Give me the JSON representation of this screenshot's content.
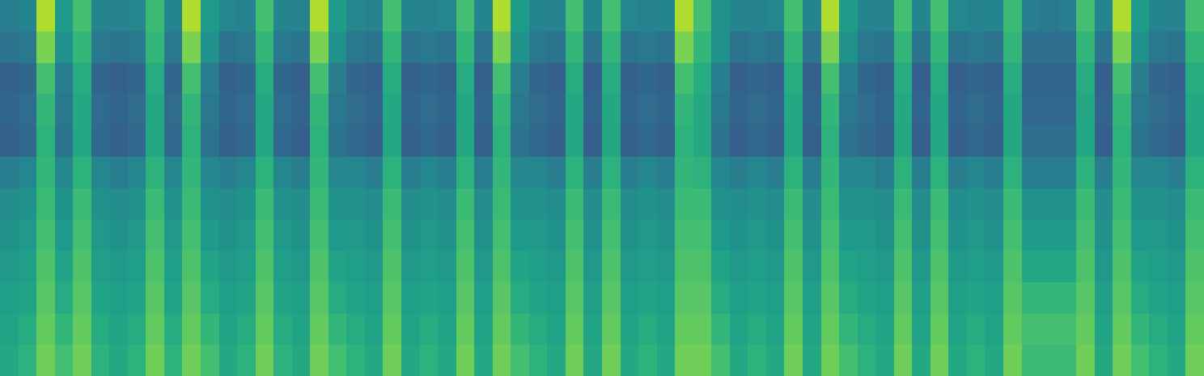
{
  "chart_data": {
    "type": "heatmap",
    "color": "Viridis",
    "tick_labels": false,
    "zlim": [
      0,
      1
    ],
    "cells": [
      [
        0.42,
        0.45,
        0.88,
        0.55,
        0.7,
        0.45,
        0.44,
        0.46,
        0.68,
        0.45,
        0.88,
        0.55,
        0.46,
        0.44,
        0.7,
        0.45,
        0.44,
        0.88,
        0.55,
        0.46,
        0.44,
        0.7,
        0.45,
        0.44,
        0.46,
        0.7,
        0.45,
        0.88,
        0.55,
        0.45,
        0.44,
        0.7,
        0.45,
        0.7,
        0.46,
        0.44,
        0.45,
        0.88,
        0.7,
        0.5,
        0.45,
        0.44,
        0.46,
        0.7,
        0.45,
        0.88,
        0.55,
        0.45,
        0.44,
        0.7,
        0.45,
        0.7,
        0.46,
        0.44,
        0.45,
        0.68,
        0.42,
        0.4,
        0.42,
        0.7,
        0.45,
        0.88,
        0.55,
        0.45,
        0.44,
        0.7
      ],
      [
        0.38,
        0.4,
        0.8,
        0.5,
        0.66,
        0.4,
        0.38,
        0.4,
        0.66,
        0.4,
        0.8,
        0.5,
        0.38,
        0.4,
        0.66,
        0.4,
        0.38,
        0.8,
        0.5,
        0.4,
        0.38,
        0.66,
        0.38,
        0.4,
        0.38,
        0.66,
        0.38,
        0.8,
        0.5,
        0.4,
        0.38,
        0.66,
        0.38,
        0.66,
        0.38,
        0.4,
        0.38,
        0.8,
        0.66,
        0.5,
        0.38,
        0.4,
        0.38,
        0.66,
        0.38,
        0.8,
        0.5,
        0.4,
        0.38,
        0.66,
        0.38,
        0.66,
        0.38,
        0.4,
        0.38,
        0.66,
        0.36,
        0.36,
        0.36,
        0.66,
        0.38,
        0.8,
        0.5,
        0.4,
        0.38,
        0.66
      ],
      [
        0.3,
        0.33,
        0.7,
        0.42,
        0.62,
        0.33,
        0.3,
        0.33,
        0.62,
        0.33,
        0.7,
        0.42,
        0.3,
        0.33,
        0.62,
        0.33,
        0.3,
        0.7,
        0.42,
        0.33,
        0.3,
        0.62,
        0.3,
        0.33,
        0.3,
        0.62,
        0.3,
        0.7,
        0.42,
        0.33,
        0.3,
        0.62,
        0.3,
        0.62,
        0.3,
        0.33,
        0.3,
        0.7,
        0.62,
        0.42,
        0.3,
        0.33,
        0.3,
        0.62,
        0.3,
        0.7,
        0.42,
        0.33,
        0.3,
        0.62,
        0.3,
        0.62,
        0.3,
        0.33,
        0.3,
        0.62,
        0.32,
        0.32,
        0.32,
        0.62,
        0.3,
        0.7,
        0.42,
        0.33,
        0.3,
        0.62
      ],
      [
        0.32,
        0.35,
        0.66,
        0.4,
        0.6,
        0.35,
        0.32,
        0.35,
        0.6,
        0.35,
        0.66,
        0.4,
        0.32,
        0.35,
        0.6,
        0.35,
        0.32,
        0.66,
        0.4,
        0.35,
        0.32,
        0.6,
        0.32,
        0.35,
        0.32,
        0.6,
        0.32,
        0.66,
        0.4,
        0.35,
        0.32,
        0.6,
        0.32,
        0.6,
        0.32,
        0.35,
        0.32,
        0.66,
        0.6,
        0.4,
        0.32,
        0.35,
        0.32,
        0.6,
        0.32,
        0.66,
        0.4,
        0.35,
        0.32,
        0.6,
        0.32,
        0.6,
        0.32,
        0.35,
        0.32,
        0.6,
        0.34,
        0.34,
        0.34,
        0.6,
        0.32,
        0.66,
        0.4,
        0.35,
        0.32,
        0.6
      ],
      [
        0.3,
        0.34,
        0.64,
        0.38,
        0.6,
        0.34,
        0.3,
        0.34,
        0.6,
        0.34,
        0.64,
        0.38,
        0.3,
        0.34,
        0.6,
        0.34,
        0.3,
        0.64,
        0.38,
        0.34,
        0.3,
        0.6,
        0.3,
        0.34,
        0.3,
        0.6,
        0.3,
        0.64,
        0.38,
        0.34,
        0.3,
        0.6,
        0.3,
        0.6,
        0.3,
        0.34,
        0.3,
        0.64,
        0.6,
        0.38,
        0.3,
        0.34,
        0.3,
        0.6,
        0.3,
        0.64,
        0.38,
        0.34,
        0.3,
        0.6,
        0.3,
        0.6,
        0.3,
        0.34,
        0.3,
        0.6,
        0.36,
        0.36,
        0.36,
        0.6,
        0.3,
        0.64,
        0.38,
        0.34,
        0.3,
        0.6
      ],
      [
        0.42,
        0.46,
        0.66,
        0.46,
        0.64,
        0.46,
        0.42,
        0.46,
        0.64,
        0.46,
        0.66,
        0.46,
        0.42,
        0.46,
        0.64,
        0.46,
        0.42,
        0.66,
        0.46,
        0.46,
        0.42,
        0.64,
        0.42,
        0.46,
        0.42,
        0.64,
        0.42,
        0.66,
        0.46,
        0.46,
        0.42,
        0.64,
        0.42,
        0.64,
        0.42,
        0.46,
        0.42,
        0.66,
        0.64,
        0.46,
        0.42,
        0.46,
        0.42,
        0.64,
        0.42,
        0.66,
        0.46,
        0.46,
        0.42,
        0.64,
        0.42,
        0.64,
        0.42,
        0.46,
        0.42,
        0.64,
        0.42,
        0.42,
        0.42,
        0.64,
        0.42,
        0.66,
        0.46,
        0.46,
        0.42,
        0.64
      ],
      [
        0.48,
        0.5,
        0.68,
        0.5,
        0.68,
        0.5,
        0.48,
        0.5,
        0.68,
        0.5,
        0.68,
        0.5,
        0.48,
        0.5,
        0.68,
        0.5,
        0.48,
        0.68,
        0.5,
        0.5,
        0.48,
        0.68,
        0.48,
        0.5,
        0.48,
        0.68,
        0.48,
        0.68,
        0.5,
        0.5,
        0.48,
        0.68,
        0.48,
        0.68,
        0.48,
        0.5,
        0.48,
        0.68,
        0.68,
        0.5,
        0.48,
        0.5,
        0.48,
        0.68,
        0.48,
        0.68,
        0.5,
        0.5,
        0.48,
        0.68,
        0.48,
        0.68,
        0.48,
        0.5,
        0.48,
        0.68,
        0.5,
        0.5,
        0.5,
        0.68,
        0.48,
        0.68,
        0.5,
        0.5,
        0.48,
        0.68
      ],
      [
        0.5,
        0.53,
        0.7,
        0.54,
        0.7,
        0.53,
        0.5,
        0.53,
        0.7,
        0.53,
        0.7,
        0.54,
        0.5,
        0.53,
        0.7,
        0.53,
        0.5,
        0.7,
        0.54,
        0.53,
        0.5,
        0.7,
        0.5,
        0.53,
        0.5,
        0.7,
        0.5,
        0.7,
        0.54,
        0.53,
        0.5,
        0.7,
        0.5,
        0.7,
        0.5,
        0.53,
        0.5,
        0.7,
        0.7,
        0.54,
        0.5,
        0.53,
        0.5,
        0.7,
        0.5,
        0.7,
        0.54,
        0.53,
        0.5,
        0.7,
        0.5,
        0.7,
        0.5,
        0.53,
        0.5,
        0.7,
        0.55,
        0.55,
        0.55,
        0.7,
        0.5,
        0.7,
        0.54,
        0.53,
        0.5,
        0.7
      ],
      [
        0.53,
        0.56,
        0.72,
        0.58,
        0.72,
        0.56,
        0.53,
        0.56,
        0.72,
        0.56,
        0.72,
        0.58,
        0.53,
        0.56,
        0.72,
        0.56,
        0.53,
        0.72,
        0.58,
        0.56,
        0.53,
        0.72,
        0.53,
        0.56,
        0.53,
        0.72,
        0.53,
        0.72,
        0.58,
        0.56,
        0.53,
        0.72,
        0.53,
        0.72,
        0.53,
        0.56,
        0.53,
        0.72,
        0.72,
        0.58,
        0.53,
        0.56,
        0.53,
        0.72,
        0.53,
        0.72,
        0.58,
        0.56,
        0.53,
        0.72,
        0.53,
        0.72,
        0.53,
        0.56,
        0.53,
        0.72,
        0.6,
        0.6,
        0.6,
        0.72,
        0.53,
        0.72,
        0.58,
        0.56,
        0.53,
        0.72
      ],
      [
        0.56,
        0.58,
        0.74,
        0.62,
        0.74,
        0.58,
        0.56,
        0.58,
        0.74,
        0.58,
        0.74,
        0.62,
        0.56,
        0.58,
        0.74,
        0.58,
        0.56,
        0.74,
        0.62,
        0.58,
        0.56,
        0.74,
        0.56,
        0.58,
        0.56,
        0.74,
        0.56,
        0.74,
        0.62,
        0.58,
        0.56,
        0.74,
        0.56,
        0.74,
        0.56,
        0.58,
        0.56,
        0.74,
        0.74,
        0.62,
        0.56,
        0.58,
        0.56,
        0.74,
        0.56,
        0.74,
        0.62,
        0.58,
        0.56,
        0.74,
        0.56,
        0.74,
        0.56,
        0.58,
        0.56,
        0.74,
        0.66,
        0.66,
        0.66,
        0.74,
        0.56,
        0.74,
        0.62,
        0.58,
        0.56,
        0.74
      ],
      [
        0.58,
        0.62,
        0.76,
        0.66,
        0.76,
        0.62,
        0.58,
        0.62,
        0.76,
        0.62,
        0.76,
        0.66,
        0.58,
        0.62,
        0.76,
        0.62,
        0.58,
        0.76,
        0.66,
        0.62,
        0.58,
        0.76,
        0.58,
        0.62,
        0.58,
        0.76,
        0.58,
        0.76,
        0.66,
        0.62,
        0.58,
        0.76,
        0.58,
        0.76,
        0.58,
        0.62,
        0.58,
        0.76,
        0.76,
        0.66,
        0.58,
        0.62,
        0.58,
        0.76,
        0.58,
        0.76,
        0.66,
        0.62,
        0.58,
        0.76,
        0.58,
        0.76,
        0.58,
        0.62,
        0.58,
        0.76,
        0.7,
        0.7,
        0.7,
        0.76,
        0.58,
        0.76,
        0.66,
        0.62,
        0.58,
        0.76
      ],
      [
        0.6,
        0.64,
        0.78,
        0.7,
        0.78,
        0.64,
        0.6,
        0.64,
        0.78,
        0.64,
        0.78,
        0.7,
        0.6,
        0.64,
        0.78,
        0.64,
        0.6,
        0.78,
        0.7,
        0.64,
        0.6,
        0.78,
        0.6,
        0.64,
        0.6,
        0.78,
        0.6,
        0.78,
        0.7,
        0.64,
        0.6,
        0.78,
        0.6,
        0.78,
        0.6,
        0.64,
        0.6,
        0.78,
        0.78,
        0.7,
        0.6,
        0.64,
        0.6,
        0.78,
        0.6,
        0.78,
        0.7,
        0.64,
        0.6,
        0.78,
        0.6,
        0.78,
        0.6,
        0.64,
        0.6,
        0.78,
        0.68,
        0.68,
        0.68,
        0.78,
        0.6,
        0.78,
        0.7,
        0.64,
        0.6,
        0.78
      ]
    ]
  }
}
